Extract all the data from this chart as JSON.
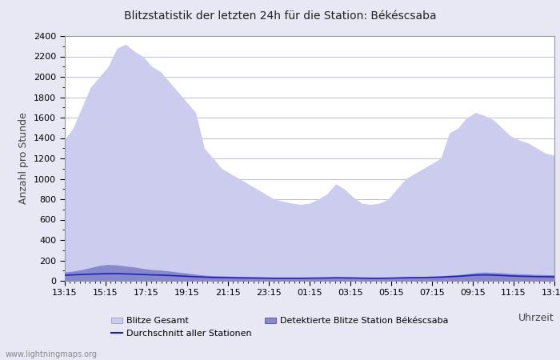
{
  "title": "Blitzstatistik der letzten 24h für die Station: Békéscsaba",
  "xlabel": "Uhrzeit",
  "ylabel": "Anzahl pro Stunde",
  "ylim": [
    0,
    2400
  ],
  "yticks": [
    0,
    200,
    400,
    600,
    800,
    1000,
    1200,
    1400,
    1600,
    1800,
    2000,
    2200,
    2400
  ],
  "xtick_labels": [
    "13:15",
    "15:15",
    "17:15",
    "19:15",
    "21:15",
    "23:15",
    "01:15",
    "03:15",
    "05:15",
    "07:15",
    "09:15",
    "11:15",
    "13:15"
  ],
  "background_color": "#e8e8f4",
  "plot_bg_color": "#ffffff",
  "color_gesamt_fill": "#ccccee",
  "color_detektiert_fill": "#8888cc",
  "color_avg_line": "#2222bb",
  "legend_labels": [
    "Blitze Gesamt",
    "Detektierte Blitze Station Békéscsaba",
    "Durchschnitt aller Stationen"
  ],
  "watermark": "www.lightningmaps.org",
  "gesamt": [
    1380,
    1500,
    1700,
    1900,
    2000,
    2100,
    2280,
    2320,
    2250,
    2200,
    2100,
    2050,
    1950,
    1850,
    1750,
    1650,
    1300,
    1200,
    1100,
    1050,
    1000,
    950,
    900,
    850,
    800,
    780,
    760,
    750,
    760,
    800,
    850,
    950,
    900,
    820,
    760,
    750,
    760,
    800,
    900,
    1000,
    1050,
    1100,
    1150,
    1200,
    1450,
    1500,
    1600,
    1650,
    1620,
    1580,
    1500,
    1420,
    1380,
    1350,
    1300,
    1250,
    1230
  ],
  "detektiert": [
    85,
    95,
    110,
    130,
    150,
    160,
    155,
    145,
    135,
    120,
    110,
    105,
    95,
    85,
    75,
    65,
    55,
    50,
    48,
    45,
    42,
    40,
    38,
    36,
    34,
    33,
    32,
    32,
    33,
    34,
    36,
    38,
    36,
    34,
    32,
    30,
    30,
    32,
    35,
    38,
    40,
    42,
    45,
    48,
    55,
    60,
    70,
    80,
    85,
    82,
    78,
    72,
    68,
    65,
    62,
    60,
    58
  ],
  "avg_line": [
    55,
    58,
    62,
    65,
    68,
    70,
    70,
    68,
    65,
    62,
    58,
    56,
    52,
    48,
    44,
    40,
    36,
    33,
    31,
    30,
    29,
    28,
    27,
    26,
    25,
    25,
    25,
    25,
    26,
    27,
    28,
    30,
    29,
    28,
    26,
    25,
    25,
    26,
    28,
    30,
    31,
    32,
    34,
    36,
    40,
    44,
    50,
    56,
    58,
    56,
    52,
    48,
    45,
    43,
    41,
    40,
    38
  ]
}
